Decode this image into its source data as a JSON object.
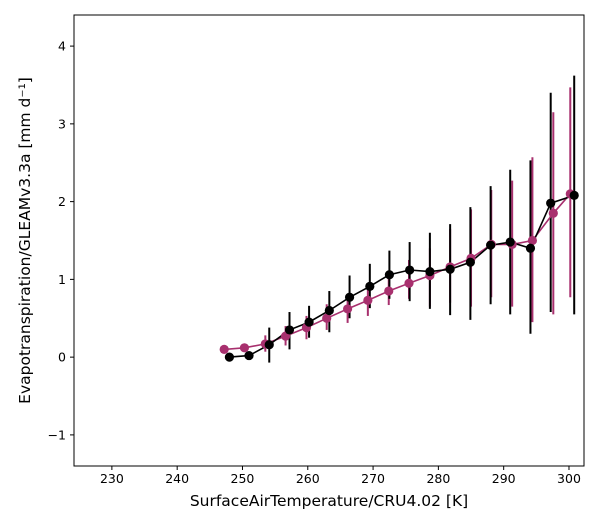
{
  "chart_data": {
    "type": "scatter",
    "title": "",
    "xlabel": "SurfaceAirTemperature/CRU4.02 [K]",
    "ylabel": "Evapotranspiration/GLEAMv3.3a [mm d⁻¹]",
    "xlim": [
      224.2,
      302.3
    ],
    "ylim": [
      -1.4,
      4.4
    ],
    "xticks": [
      230,
      240,
      250,
      260,
      270,
      280,
      290,
      300
    ],
    "yticks": [
      -1,
      0,
      1,
      2,
      3,
      4
    ],
    "xtick_labels": [
      "230",
      "240",
      "250",
      "260",
      "270",
      "280",
      "290",
      "300"
    ],
    "ytick_labels": [
      "−1",
      "0",
      "1",
      "2",
      "3",
      "4"
    ],
    "grid": false,
    "series": [
      {
        "color": "#a8306e",
        "x": [
          247.2,
          250.3,
          253.5,
          256.6,
          259.8,
          262.9,
          266.1,
          269.2,
          272.4,
          275.5,
          278.7,
          281.8,
          285.0,
          288.1,
          291.3,
          294.4,
          297.6,
          300.2
        ],
        "y": [
          0.1,
          0.12,
          0.17,
          0.27,
          0.38,
          0.5,
          0.62,
          0.73,
          0.85,
          0.95,
          1.05,
          1.16,
          1.27,
          1.45,
          1.45,
          1.5,
          1.85,
          2.1
        ],
        "err_low": [
          0.1,
          0.12,
          0.07,
          0.15,
          0.23,
          0.35,
          0.44,
          0.53,
          0.67,
          0.75,
          0.65,
          0.7,
          0.65,
          0.77,
          0.65,
          0.45,
          0.55,
          0.77
        ],
        "err_high": [
          0.1,
          0.12,
          0.28,
          0.4,
          0.53,
          0.68,
          0.79,
          0.95,
          1.08,
          1.25,
          1.4,
          1.65,
          1.9,
          2.15,
          2.27,
          2.57,
          3.15,
          3.47
        ]
      },
      {
        "color": "#000000",
        "x": [
          248.0,
          251.0,
          254.1,
          257.2,
          260.2,
          263.3,
          266.4,
          269.5,
          272.5,
          275.6,
          278.7,
          281.8,
          284.9,
          288.0,
          291.0,
          294.1,
          297.2,
          300.8
        ],
        "y": [
          0.0,
          0.02,
          0.16,
          0.35,
          0.45,
          0.6,
          0.77,
          0.91,
          1.06,
          1.12,
          1.1,
          1.13,
          1.22,
          1.44,
          1.48,
          1.4,
          1.98,
          2.08
        ],
        "err_low": [
          0.0,
          0.02,
          -0.07,
          0.1,
          0.25,
          0.32,
          0.5,
          0.63,
          0.75,
          0.72,
          0.62,
          0.54,
          0.48,
          0.68,
          0.55,
          0.3,
          0.58,
          0.55
        ],
        "err_high": [
          0.0,
          0.02,
          0.38,
          0.58,
          0.66,
          0.85,
          1.05,
          1.2,
          1.37,
          1.48,
          1.6,
          1.71,
          1.93,
          2.2,
          2.41,
          2.53,
          3.4,
          3.62
        ]
      }
    ]
  }
}
